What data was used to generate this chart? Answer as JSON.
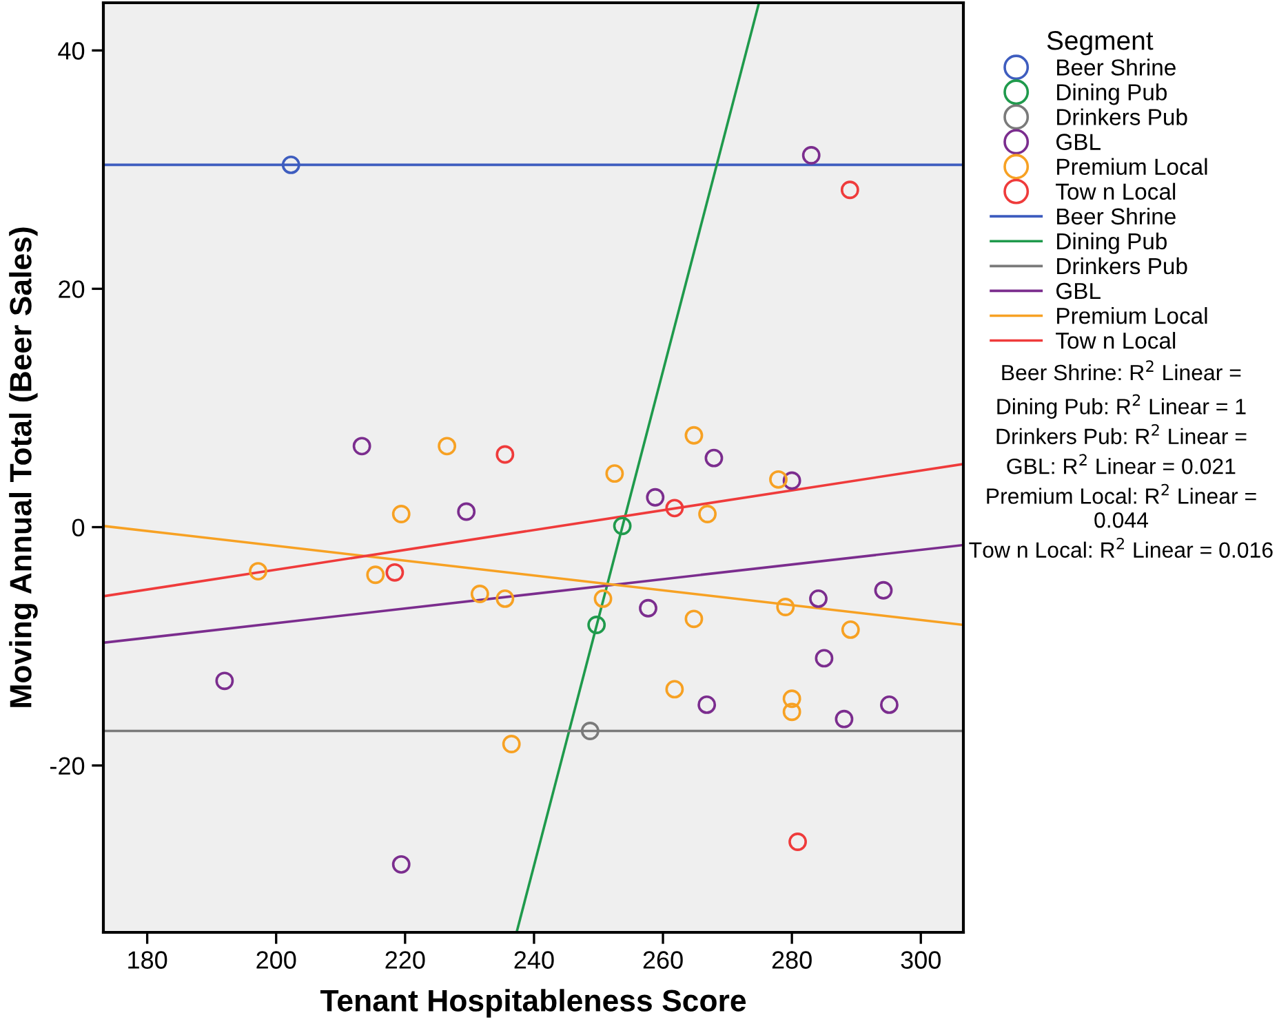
{
  "chart_data": {
    "type": "scatter",
    "xlabel": "Tenant Hospitableness Score",
    "ylabel": "Moving Annual Total (Beer Sales)",
    "xlim": [
      173.2,
      306.6
    ],
    "xticks": [
      180,
      200,
      220,
      240,
      260,
      280,
      300
    ],
    "ylim": [
      -34,
      44
    ],
    "yticks": [
      {
        "value": -20,
        "label": "-20"
      },
      0,
      20,
      40
    ],
    "grid": false,
    "legend": "right",
    "legend_title": "Segment",
    "marker": "circle",
    "series": [
      {
        "name": "Beer Shrine",
        "color": "#3e5dbf",
        "x": [
          202.3
        ],
        "values": [
          30.4
        ]
      },
      {
        "name": "Dining Pub",
        "color": "#1f9a4c",
        "x": [
          253.7,
          249.7
        ],
        "values": [
          0.1,
          -8.2
        ]
      },
      {
        "name": "Drinkers Pub",
        "color": "#7a7a7a",
        "x": [
          248.7
        ],
        "values": [
          -17.1
        ]
      },
      {
        "name": "GBL",
        "color": "#7b2d8e",
        "x": [
          213.3,
          229.5,
          283.0,
          267.9,
          280.0,
          258.8,
          219.4,
          192.0,
          257.7,
          284.1,
          294.2,
          285.0,
          266.8,
          288.1,
          295.1
        ],
        "values": [
          6.8,
          1.3,
          31.2,
          5.8,
          3.9,
          2.5,
          -28.3,
          -12.9,
          -6.8,
          -6.0,
          -5.3,
          -11.0,
          -14.9,
          -16.1,
          -14.9
        ]
      },
      {
        "name": "Premium Local",
        "color": "#f7a123",
        "x": [
          226.5,
          219.4,
          252.5,
          264.8,
          277.9,
          266.9,
          197.2,
          215.4,
          231.6,
          235.5,
          250.7,
          236.5,
          264.8,
          279.0,
          289.1,
          261.8,
          280.0,
          280.0
        ],
        "values": [
          6.8,
          1.1,
          4.5,
          7.7,
          4.0,
          1.1,
          -3.7,
          -4.0,
          -5.6,
          -6.0,
          -6.0,
          -18.2,
          -7.7,
          -6.7,
          -8.6,
          -13.6,
          -14.4,
          -15.5
        ]
      },
      {
        "name": "Tow n Local",
        "color": "#ef3b3b",
        "x": [
          235.5,
          289.0,
          261.8,
          218.4,
          280.9
        ],
        "values": [
          6.1,
          28.3,
          1.6,
          -3.8,
          -26.4
        ]
      },
      {
        "name": "Beer Shrine",
        "type": "line",
        "marker": "none",
        "color": "#3e5dbf",
        "x": [
          173.2,
          306.6
        ],
        "values": [
          30.4,
          30.4
        ]
      },
      {
        "name": "Dining Pub",
        "type": "line",
        "marker": "none",
        "color": "#1f9a4c",
        "x": [
          237.3,
          274.9
        ],
        "values": [
          -34,
          44
        ]
      },
      {
        "name": "Drinkers Pub",
        "type": "line",
        "marker": "none",
        "color": "#7a7a7a",
        "x": [
          173.2,
          306.6
        ],
        "values": [
          -17.1,
          -17.1
        ]
      },
      {
        "name": "GBL",
        "type": "line",
        "marker": "none",
        "color": "#7b2d8e",
        "x": [
          173.2,
          306.6
        ],
        "values": [
          -9.7,
          -1.5
        ]
      },
      {
        "name": "Premium Local",
        "type": "line",
        "marker": "none",
        "color": "#f7a123",
        "x": [
          173.2,
          306.6
        ],
        "values": [
          0.1,
          -8.2
        ]
      },
      {
        "name": "Tow n Local",
        "type": "line",
        "marker": "none",
        "color": "#ef3b3b",
        "x": [
          173.2,
          306.6
        ],
        "values": [
          -5.8,
          5.3
        ]
      }
    ],
    "annotations": [
      "Beer Shrine: R$^{2}$ Linear =",
      "Dining Pub: R$^{2}$ Linear = 1",
      "Drinkers Pub: R$^{2}$ Linear =",
      "GBL: R$^{2}$ Linear = 0.021",
      "Premium Local: R$^{2}$ Linear = 0.044",
      "Tow n Local: R$^{2}$ Linear = 0.016"
    ]
  }
}
